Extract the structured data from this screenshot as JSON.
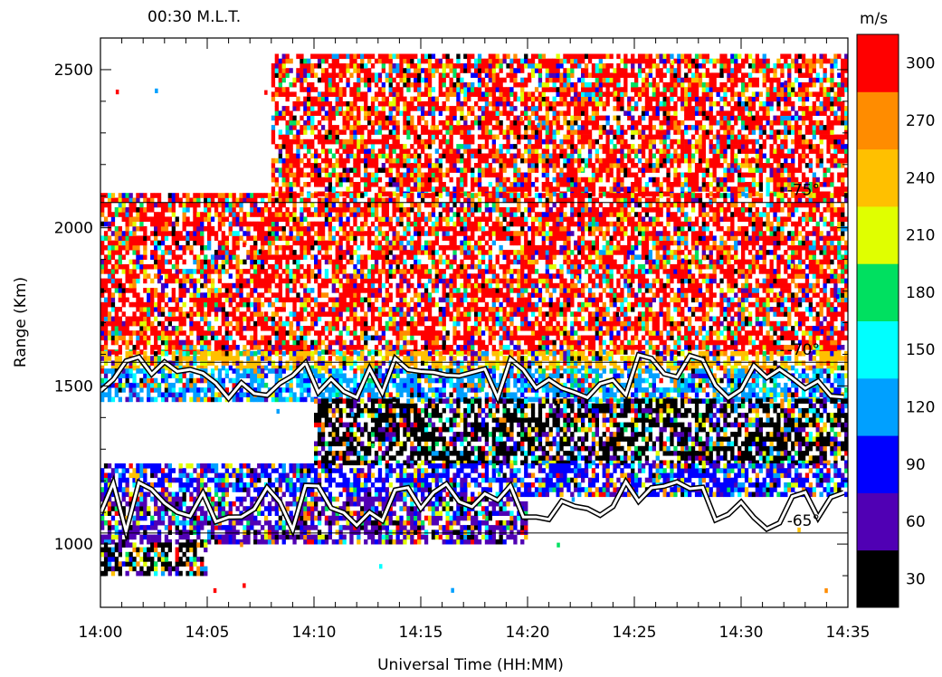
{
  "header": {
    "mlt_label": "00:30 M.L.T.",
    "unit_label": "m/s"
  },
  "chart_data": {
    "type": "heatmap",
    "xlabel": "Universal Time (HH:MM)",
    "ylabel": "Range (Km)",
    "x_ticks": [
      "14:00",
      "14:05",
      "14:10",
      "14:15",
      "14:20",
      "14:25",
      "14:30",
      "14:35"
    ],
    "x_range_minutes": [
      0,
      35
    ],
    "y_ticks": [
      1000,
      1500,
      2000,
      2500
    ],
    "ylim": [
      800,
      2600
    ],
    "colorbar": {
      "title": "m/s",
      "labels": [
        30,
        60,
        90,
        120,
        150,
        180,
        210,
        240,
        270,
        300
      ],
      "colors": [
        "#000000",
        "#5000b4",
        "#0000ff",
        "#00a0ff",
        "#00ffff",
        "#00e060",
        "#e0ff00",
        "#ffc000",
        "#ff8c00",
        "#ff0000"
      ]
    },
    "latitude_contours": [
      {
        "label": "-65°",
        "range_km": 1035
      },
      {
        "label": "-70°",
        "range_km": 1575
      },
      {
        "label": "-75°",
        "range_km": 2080
      }
    ],
    "velocity_bands": [
      {
        "range_km": [
          2100,
          2550
        ],
        "time_min": [
          8,
          35
        ],
        "dominant_velocity": 300
      },
      {
        "range_km": [
          1600,
          2100
        ],
        "time_min": [
          0,
          35
        ],
        "dominant_velocity": 300
      },
      {
        "range_km": [
          1550,
          1600
        ],
        "time_min": [
          0,
          35
        ],
        "dominant_velocity": 240
      },
      {
        "range_km": [
          1450,
          1550
        ],
        "time_min": [
          0,
          35
        ],
        "dominant_velocity": 120
      },
      {
        "range_km": [
          1250,
          1450
        ],
        "time_min": [
          10,
          35
        ],
        "dominant_velocity": 30
      },
      {
        "range_km": [
          1150,
          1250
        ],
        "time_min": [
          0,
          35
        ],
        "dominant_velocity": 90
      },
      {
        "range_km": [
          1000,
          1150
        ],
        "time_min": [
          0,
          20
        ],
        "dominant_velocity": 60
      },
      {
        "range_km": [
          900,
          1000
        ],
        "time_min": [
          0,
          5
        ],
        "dominant_velocity": 30
      }
    ]
  }
}
